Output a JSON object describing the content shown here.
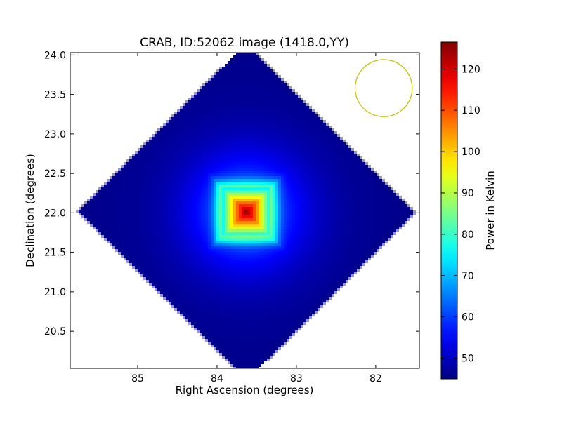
{
  "chart_data": {
    "type": "heatmap",
    "title": "CRAB, ID:52062 image (1418.0,YY)",
    "xlabel": "Right Ascension (degrees)",
    "ylabel": "Declination (degrees)",
    "xlim": [
      85.85,
      81.45
    ],
    "ylim": [
      20.03,
      24.03
    ],
    "x_ticks": [
      85,
      84,
      83,
      82
    ],
    "x_tick_labels": [
      "85",
      "84",
      "83",
      "82"
    ],
    "y_ticks": [
      20.5,
      21.0,
      21.5,
      22.0,
      22.5,
      23.0,
      23.5,
      24.0
    ],
    "y_tick_labels": [
      "20.5",
      "21.0",
      "21.5",
      "22.0",
      "22.5",
      "23.0",
      "23.5",
      "24.0"
    ],
    "colorbar": {
      "label": "Power in Kelvin",
      "range": [
        45,
        126.5
      ],
      "ticks": [
        50,
        60,
        70,
        80,
        90,
        100,
        110,
        120
      ],
      "tick_labels": [
        "50",
        "60",
        "70",
        "80",
        "90",
        "100",
        "110",
        "120"
      ],
      "colormap": "jet"
    },
    "map": {
      "shape": "diamond",
      "center_ra": 83.63,
      "center_dec": 22.01,
      "half_extent_deg": 2.15,
      "background_level": 46,
      "peak_level": 126,
      "source": {
        "ra": 83.63,
        "dec": 22.01,
        "core_half_width_deg": 0.3,
        "halo_radius_deg": 0.65
      }
    },
    "beam_circle": {
      "ra": 81.9,
      "dec": 23.58,
      "radius_deg": 0.36,
      "color": "#bfbf00"
    }
  }
}
